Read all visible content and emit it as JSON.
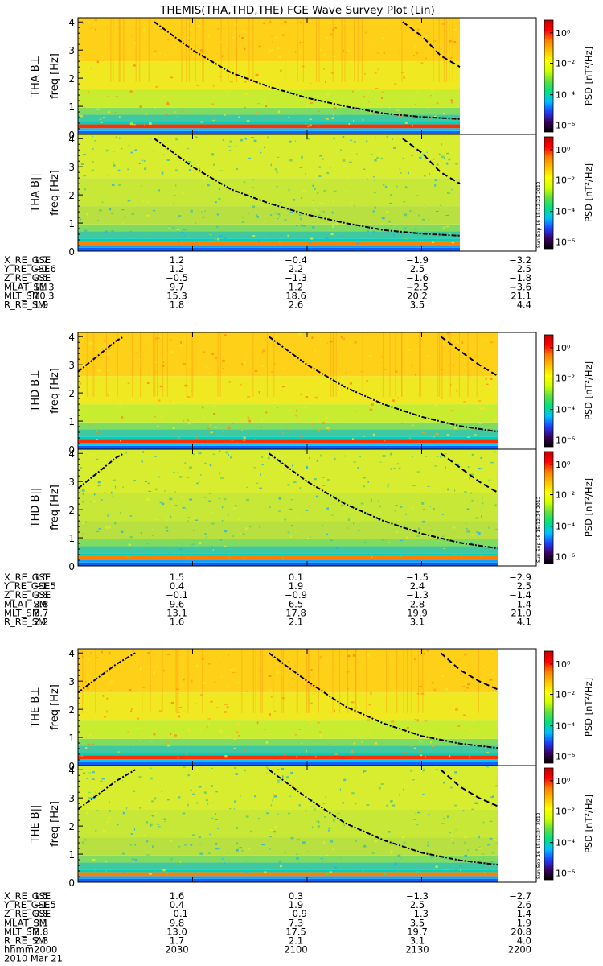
{
  "figure": {
    "title": "THEMIS(THA,THD,THE) FGE Wave Survey Plot (Lin)",
    "date_label": "2010 Mar 21",
    "time_row_label": "hhmm",
    "time_ticks": [
      "2000",
      "2030",
      "2100",
      "2130",
      "2200"
    ]
  },
  "chart_data": {
    "type": "heatmap",
    "title": "THEMIS(THA,THD,THE) FGE Wave Survey Plot (Lin)",
    "x_range": [
      "2000",
      "2200"
    ],
    "y_range": [
      0,
      4
    ],
    "y_ticks": [
      "0",
      "1",
      "2",
      "3",
      "4"
    ],
    "ylabel": "freq [Hz]",
    "colorbar": {
      "label": "PSD [nT²/Hz]",
      "ticks": [
        "10⁰",
        "10⁻²",
        "10⁻⁴",
        "10⁻⁶"
      ],
      "colors": [
        "#000000",
        "#3d0060",
        "#2040ff",
        "#00c0ff",
        "#00e080",
        "#60e040",
        "#d0ff00",
        "#ffff00",
        "#ffc000",
        "#ff8000",
        "#ff0000",
        "#c00000"
      ]
    },
    "probes": [
      {
        "id": "THA",
        "data_end_time": "2140",
        "panels": [
          {
            "label": "THA B⊥",
            "stamp": ""
          },
          {
            "label": "THA B||",
            "stamp": "Sun Sep 16 15:12:23 2012"
          }
        ],
        "ephemeris": [
          {
            "name": "X_RE_GSE",
            "values": [
              "1.7",
              "1.2",
              "−0.4",
              "−1.9",
              "−3.2"
            ]
          },
          {
            "name": "Y_RE_GSE",
            "values": [
              "−0.6",
              "1.2",
              "2.2",
              "2.5",
              "2.5"
            ]
          },
          {
            "name": "Z_RE_GSE",
            "values": [
              "0.5",
              "−0.5",
              "−1.3",
              "−1.6",
              "−1.8"
            ]
          },
          {
            "name": "MLAT_SM",
            "values": [
              "11.3",
              "9.7",
              "1.2",
              "−2.5",
              "−3.6"
            ]
          },
          {
            "name": "MLT_SM",
            "values": [
              "10.3",
              "15.3",
              "18.6",
              "20.2",
              "21.1"
            ]
          },
          {
            "name": "R_RE_SM",
            "values": [
              "1.9",
              "1.8",
              "2.6",
              "3.5",
              "4.4"
            ]
          }
        ],
        "curves": {
          "dashdot": [
            [
              "2020.0",
              4.0
            ],
            [
              "2030.0",
              3.0
            ],
            [
              "2040.0",
              2.2
            ],
            [
              "2050.0",
              1.7
            ],
            [
              "2100.0",
              1.3
            ],
            [
              "2110.0",
              1.0
            ],
            [
              "2120.0",
              0.75
            ],
            [
              "2130.0",
              0.62
            ],
            [
              "2140.0",
              0.55
            ]
          ],
          "dashed": [
            [
              "2125.0",
              4.0
            ],
            [
              "2130.0",
              3.5
            ],
            [
              "2135.0",
              2.8
            ],
            [
              "2140.0",
              2.4
            ]
          ]
        }
      },
      {
        "id": "THD",
        "data_end_time": "2150",
        "panels": [
          {
            "label": "THD B⊥",
            "stamp": ""
          },
          {
            "label": "THD B||",
            "stamp": "Sun Sep 16 15:12:24 2012"
          }
        ],
        "ephemeris": [
          {
            "name": "X_RE_GSE",
            "values": [
              "1.5",
              "1.5",
              "0.1",
              "−1.5",
              "−2.9"
            ]
          },
          {
            "name": "Y_RE_GSE",
            "values": [
              "−1.5",
              "0.4",
              "1.9",
              "2.4",
              "2.5"
            ]
          },
          {
            "name": "Z_RE_GSE",
            "values": [
              "0.8",
              "−0.1",
              "−0.9",
              "−1.3",
              "−1.4"
            ]
          },
          {
            "name": "MLAT_SM",
            "values": [
              "2.8",
              "9.6",
              "6.5",
              "2.8",
              "1.4"
            ]
          },
          {
            "name": "MLT_SM",
            "values": [
              "8.7",
              "13.1",
              "17.8",
              "19.9",
              "21.0"
            ]
          },
          {
            "name": "R_RE_SM",
            "values": [
              "2.2",
              "1.6",
              "2.1",
              "3.1",
              "4.1"
            ]
          }
        ],
        "curves": {
          "left": [
            [
              "2000.0",
              2.75
            ],
            [
              "2005.0",
              3.3
            ],
            [
              "2010.0",
              3.85
            ],
            [
              "2012.0",
              4.0
            ]
          ],
          "dashdot": [
            [
              "2050.0",
              4.0
            ],
            [
              "2100.0",
              3.0
            ],
            [
              "2110.0",
              2.2
            ],
            [
              "2120.0",
              1.6
            ],
            [
              "2130.0",
              1.15
            ],
            [
              "2140.0",
              0.82
            ],
            [
              "2150.0",
              0.62
            ]
          ],
          "dashed": [
            [
              "2135.0",
              4.0
            ],
            [
              "2140.0",
              3.5
            ],
            [
              "2145.0",
              3.0
            ],
            [
              "2150.0",
              2.6
            ]
          ]
        }
      },
      {
        "id": "THE",
        "data_end_time": "2150",
        "panels": [
          {
            "label": "THE B⊥",
            "stamp": ""
          },
          {
            "label": "THE B||",
            "stamp": "Sun Sep 16 15:12:24 2012"
          }
        ],
        "ephemeris": [
          {
            "name": "X_RE_GSE",
            "values": [
              "1.5",
              "1.6",
              "0.3",
              "−1.3",
              "−2.7"
            ]
          },
          {
            "name": "Y_RE_GSE",
            "values": [
              "−1.5",
              "0.4",
              "1.9",
              "2.5",
              "2.6"
            ]
          },
          {
            "name": "Z_RE_GSE",
            "values": [
              "0.8",
              "−0.1",
              "−0.9",
              "−1.3",
              "−1.4"
            ]
          },
          {
            "name": "MLAT_SM",
            "values": [
              "3.1",
              "9.8",
              "7.3",
              "3.5",
              "1.9"
            ]
          },
          {
            "name": "MLT_SM",
            "values": [
              "8.8",
              "13.0",
              "17.5",
              "19.7",
              "20.8"
            ]
          },
          {
            "name": "R_RE_SM",
            "values": [
              "2.3",
              "1.7",
              "2.1",
              "3.1",
              "4.0"
            ]
          }
        ],
        "curves": {
          "left": [
            [
              "2000.0",
              2.6
            ],
            [
              "2005.0",
              3.1
            ],
            [
              "2010.0",
              3.6
            ],
            [
              "2015.0",
              4.0
            ]
          ],
          "dashdot": [
            [
              "2050.0",
              4.0
            ],
            [
              "2100.0",
              3.0
            ],
            [
              "2110.0",
              2.1
            ],
            [
              "2120.0",
              1.5
            ],
            [
              "2130.0",
              1.05
            ],
            [
              "2140.0",
              0.78
            ],
            [
              "2150.0",
              0.62
            ]
          ],
          "dashed": [
            [
              "2135.0",
              4.0
            ],
            [
              "2140.0",
              3.4
            ],
            [
              "2145.0",
              3.0
            ],
            [
              "2150.0",
              2.7
            ]
          ]
        }
      }
    ]
  }
}
